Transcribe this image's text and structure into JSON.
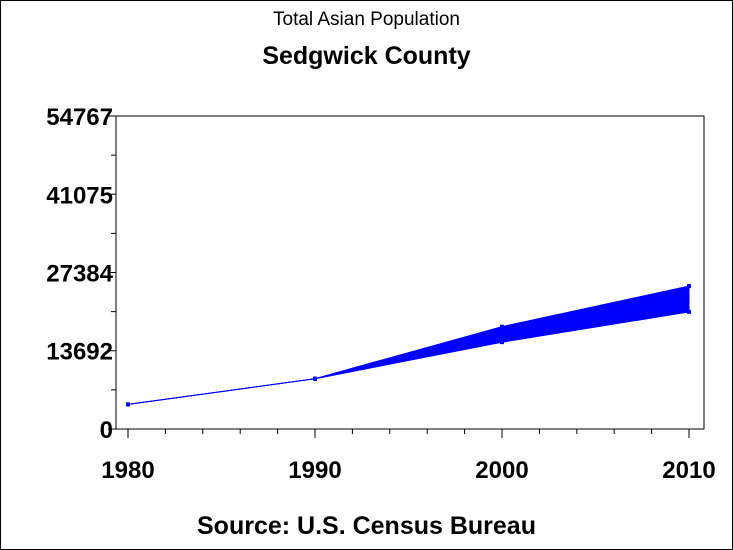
{
  "chart_data": {
    "type": "line",
    "title": "Sedgwick County",
    "subtitle": "Total Asian Population",
    "footnote": "Source: U.S. Census Bureau",
    "xlabel": "",
    "ylabel": "",
    "x": [
      1980,
      1990,
      2000,
      2010
    ],
    "x_ticks": [
      "1980",
      "1990",
      "2000",
      "2010"
    ],
    "y_ticks": [
      "0",
      "13692",
      "27384",
      "41075",
      "54767"
    ],
    "ylim": [
      0,
      54767
    ],
    "xlim": [
      1980,
      2010
    ],
    "grid": false,
    "series": [
      {
        "values": [
          4300,
          8800,
          15200,
          20500
        ]
      },
      {
        "values": [
          4300,
          8800,
          17900,
          25000
        ]
      }
    ],
    "band_between_series": true,
    "color": "#0000ff"
  }
}
